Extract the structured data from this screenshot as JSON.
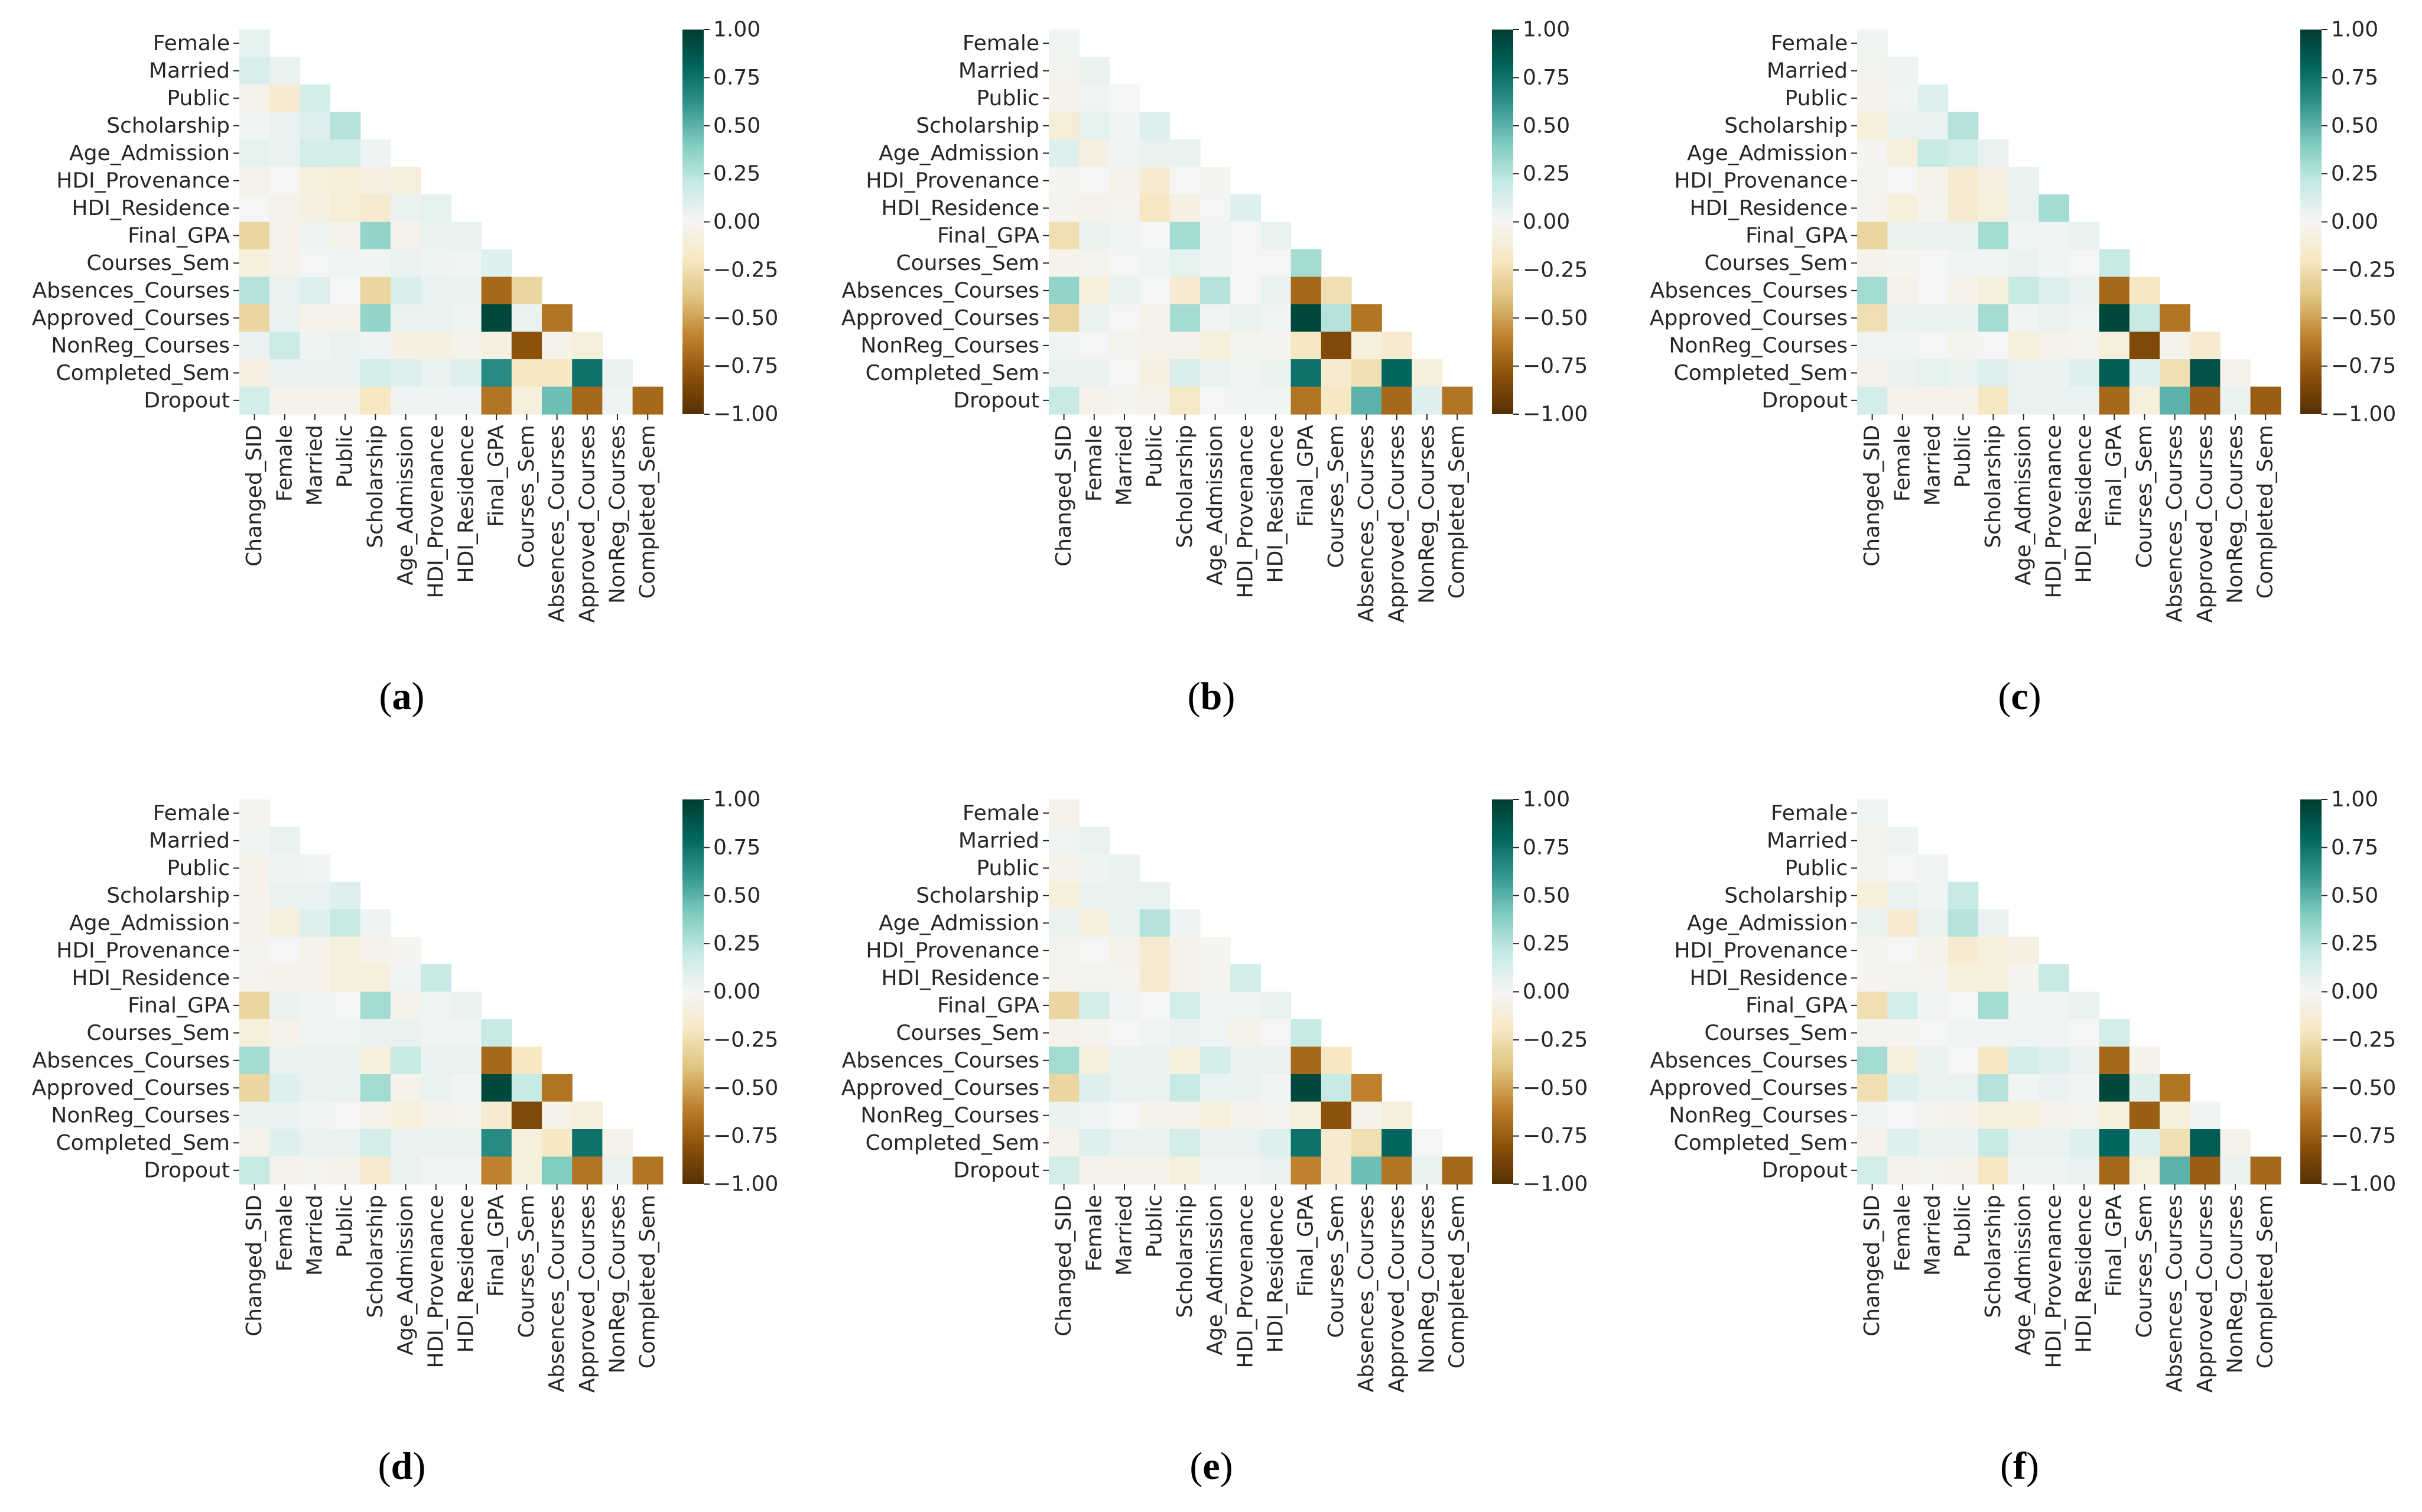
{
  "figure": {
    "variables": [
      "Changed_SID",
      "Female",
      "Married",
      "Public",
      "Scholarship",
      "Age_Admission",
      "HDI_Provenance",
      "HDI_Residence",
      "Final_GPA",
      "Courses_Sem",
      "Absences_Courses",
      "Approved_Courses",
      "NonReg_Courses",
      "Completed_Sem",
      "Dropout"
    ],
    "colorbar_ticks": [
      "1.00",
      "0.75",
      "0.50",
      "0.25",
      "0.00",
      "−0.25",
      "−0.50",
      "−0.75",
      "−1.00"
    ],
    "colormap": "BrBG",
    "colormap_stops": [
      "#543005",
      "#8c510a",
      "#bf812d",
      "#dfc27d",
      "#f6e8c3",
      "#f5f5f5",
      "#c7eae5",
      "#80cdc1",
      "#35978f",
      "#01665e",
      "#003c30"
    ]
  },
  "chart_data": [
    {
      "type": "heatmap",
      "panel_label": "(a)",
      "title": "",
      "vmin": -1,
      "vmax": 1,
      "rows": [
        "Female",
        "Married",
        "Public",
        "Scholarship",
        "Age_Admission",
        "HDI_Provenance",
        "HDI_Residence",
        "Final_GPA",
        "Courses_Sem",
        "Absences_Courses",
        "Approved_Courses",
        "NonReg_Courses",
        "Completed_Sem",
        "Dropout"
      ],
      "columns": [
        "Changed_SID",
        "Female",
        "Married",
        "Public",
        "Scholarship",
        "Age_Admission",
        "HDI_Provenance",
        "HDI_Residence",
        "Final_GPA",
        "Courses_Sem",
        "Absences_Courses",
        "Approved_Courses",
        "NonReg_Courses",
        "Completed_Sem"
      ],
      "values": [
        [
          0.08
        ],
        [
          0.12,
          0.05
        ],
        [
          -0.05,
          -0.15,
          0.15
        ],
        [
          0.02,
          0.05,
          0.1,
          0.25
        ],
        [
          0.08,
          0.05,
          0.15,
          0.15,
          0.03
        ],
        [
          -0.05,
          0.0,
          -0.1,
          -0.12,
          -0.08,
          -0.1
        ],
        [
          0.0,
          -0.05,
          -0.08,
          -0.12,
          -0.15,
          0.05,
          0.08
        ],
        [
          -0.3,
          -0.05,
          0.03,
          -0.05,
          0.35,
          -0.05,
          0.05,
          0.05
        ],
        [
          -0.1,
          -0.05,
          0.0,
          0.02,
          0.02,
          0.05,
          0.03,
          0.02,
          0.1
        ],
        [
          0.25,
          0.05,
          0.1,
          0.0,
          -0.3,
          0.12,
          0.05,
          0.05,
          -0.7,
          -0.3
        ],
        [
          -0.3,
          0.05,
          -0.05,
          -0.05,
          0.35,
          0.05,
          0.05,
          0.03,
          0.95,
          0.05,
          -0.65
        ],
        [
          0.05,
          0.18,
          0.03,
          0.05,
          0.03,
          -0.08,
          -0.08,
          -0.05,
          -0.08,
          -0.8,
          -0.05,
          -0.1
        ],
        [
          -0.08,
          0.05,
          0.05,
          0.05,
          0.15,
          0.1,
          0.05,
          0.1,
          0.65,
          -0.2,
          -0.2,
          0.75,
          0.05
        ],
        [
          0.15,
          -0.05,
          -0.05,
          -0.05,
          -0.2,
          0.03,
          0.03,
          0.03,
          -0.65,
          -0.1,
          0.45,
          -0.7,
          0.03,
          -0.7
        ]
      ]
    },
    {
      "type": "heatmap",
      "panel_label": "(b)",
      "title": "",
      "vmin": -1,
      "vmax": 1,
      "rows": [
        "Female",
        "Married",
        "Public",
        "Scholarship",
        "Age_Admission",
        "HDI_Provenance",
        "HDI_Residence",
        "Final_GPA",
        "Courses_Sem",
        "Absences_Courses",
        "Approved_Courses",
        "NonReg_Courses",
        "Completed_Sem",
        "Dropout"
      ],
      "columns": [
        "Changed_SID",
        "Female",
        "Married",
        "Public",
        "Scholarship",
        "Age_Admission",
        "HDI_Provenance",
        "HDI_Residence",
        "Final_GPA",
        "Courses_Sem",
        "Absences_Courses",
        "Approved_Courses",
        "NonReg_Courses",
        "Completed_Sem"
      ],
      "values": [
        [
          0.02
        ],
        [
          -0.03,
          0.05
        ],
        [
          -0.05,
          0.02,
          0.0
        ],
        [
          -0.12,
          0.08,
          0.02,
          0.1
        ],
        [
          0.1,
          -0.08,
          0.02,
          0.05,
          0.05
        ],
        [
          -0.02,
          0.0,
          -0.05,
          -0.15,
          0.0,
          -0.02
        ],
        [
          -0.03,
          -0.05,
          -0.03,
          -0.2,
          -0.08,
          0.0,
          0.1
        ],
        [
          -0.25,
          0.05,
          0.02,
          0.0,
          0.3,
          0.02,
          0.0,
          0.05
        ],
        [
          -0.05,
          -0.03,
          0.0,
          0.02,
          0.08,
          0.02,
          0.0,
          0.0,
          0.3
        ],
        [
          0.35,
          -0.1,
          0.05,
          0.0,
          -0.15,
          0.25,
          0.0,
          0.05,
          -0.7,
          -0.25
        ],
        [
          -0.3,
          0.05,
          0.0,
          -0.05,
          0.3,
          0.02,
          0.05,
          0.02,
          0.95,
          0.25,
          -0.65
        ],
        [
          0.02,
          0.0,
          -0.03,
          -0.05,
          -0.05,
          -0.1,
          -0.03,
          -0.02,
          -0.2,
          -0.85,
          -0.1,
          -0.15
        ],
        [
          0.05,
          0.05,
          0.0,
          -0.08,
          0.12,
          0.05,
          0.02,
          0.05,
          0.75,
          -0.15,
          -0.25,
          0.8,
          -0.1
        ],
        [
          0.2,
          -0.05,
          -0.03,
          -0.05,
          -0.18,
          0.0,
          0.02,
          0.02,
          -0.65,
          -0.2,
          0.5,
          -0.7,
          0.1,
          -0.65
        ]
      ]
    },
    {
      "type": "heatmap",
      "panel_label": "(c)",
      "title": "",
      "vmin": -1,
      "vmax": 1,
      "rows": [
        "Female",
        "Married",
        "Public",
        "Scholarship",
        "Age_Admission",
        "HDI_Provenance",
        "HDI_Residence",
        "Final_GPA",
        "Courses_Sem",
        "Absences_Courses",
        "Approved_Courses",
        "NonReg_Courses",
        "Completed_Sem",
        "Dropout"
      ],
      "columns": [
        "Changed_SID",
        "Female",
        "Married",
        "Public",
        "Scholarship",
        "Age_Admission",
        "HDI_Provenance",
        "HDI_Residence",
        "Final_GPA",
        "Courses_Sem",
        "Absences_Courses",
        "Approved_Courses",
        "NonReg_Courses",
        "Completed_Sem"
      ],
      "values": [
        [
          0.02
        ],
        [
          -0.03,
          0.03
        ],
        [
          -0.05,
          0.02,
          0.1
        ],
        [
          -0.1,
          0.05,
          0.05,
          0.25
        ],
        [
          -0.02,
          -0.1,
          0.2,
          0.15,
          0.05
        ],
        [
          -0.03,
          0.0,
          -0.05,
          -0.15,
          -0.08,
          0.05
        ],
        [
          -0.03,
          -0.1,
          -0.03,
          -0.15,
          -0.1,
          0.05,
          0.3
        ],
        [
          -0.3,
          0.05,
          0.05,
          0.05,
          0.3,
          0.02,
          0.02,
          0.05
        ],
        [
          -0.05,
          -0.02,
          0.0,
          0.02,
          0.02,
          0.05,
          0.02,
          0.0,
          0.2
        ],
        [
          0.3,
          -0.05,
          0.0,
          -0.05,
          -0.1,
          0.2,
          0.1,
          0.05,
          -0.7,
          -0.2
        ],
        [
          -0.25,
          0.05,
          0.05,
          0.05,
          0.3,
          0.02,
          0.05,
          0.02,
          0.95,
          0.2,
          -0.65
        ],
        [
          0.02,
          0.02,
          0.0,
          -0.03,
          0.0,
          -0.1,
          -0.05,
          -0.03,
          -0.1,
          -0.85,
          -0.05,
          -0.15
        ],
        [
          -0.05,
          0.05,
          0.08,
          0.05,
          0.1,
          0.05,
          0.05,
          0.1,
          0.85,
          0.1,
          -0.25,
          0.9,
          -0.05
        ],
        [
          0.15,
          -0.05,
          -0.05,
          -0.05,
          -0.2,
          0.05,
          0.05,
          0.05,
          -0.7,
          -0.1,
          0.5,
          -0.75,
          0.05,
          -0.75
        ]
      ]
    },
    {
      "type": "heatmap",
      "panel_label": "(d)",
      "title": "",
      "vmin": -1,
      "vmax": 1,
      "rows": [
        "Female",
        "Married",
        "Public",
        "Scholarship",
        "Age_Admission",
        "HDI_Provenance",
        "HDI_Residence",
        "Final_GPA",
        "Courses_Sem",
        "Absences_Courses",
        "Approved_Courses",
        "NonReg_Courses",
        "Completed_Sem",
        "Dropout"
      ],
      "columns": [
        "Changed_SID",
        "Female",
        "Married",
        "Public",
        "Scholarship",
        "Age_Admission",
        "HDI_Provenance",
        "HDI_Residence",
        "Final_GPA",
        "Courses_Sem",
        "Absences_Courses",
        "Approved_Courses",
        "NonReg_Courses",
        "Completed_Sem"
      ],
      "values": [
        [
          -0.02
        ],
        [
          0.02,
          0.05
        ],
        [
          -0.05,
          0.03,
          0.02
        ],
        [
          -0.05,
          0.05,
          0.05,
          0.1
        ],
        [
          -0.05,
          -0.1,
          0.1,
          0.2,
          0.03
        ],
        [
          -0.03,
          0.0,
          -0.05,
          -0.1,
          -0.05,
          -0.02
        ],
        [
          -0.03,
          -0.05,
          -0.05,
          -0.1,
          -0.1,
          0.02,
          0.2
        ],
        [
          -0.3,
          0.05,
          0.02,
          0.0,
          0.3,
          -0.05,
          0.02,
          0.05
        ],
        [
          -0.1,
          -0.05,
          0.02,
          0.02,
          0.05,
          0.05,
          0.02,
          0.02,
          0.2
        ],
        [
          0.3,
          0.05,
          0.05,
          0.05,
          -0.1,
          0.2,
          0.05,
          0.05,
          -0.7,
          -0.2
        ],
        [
          -0.3,
          0.1,
          0.05,
          0.05,
          0.3,
          -0.05,
          0.05,
          0.02,
          0.95,
          0.2,
          -0.65
        ],
        [
          0.05,
          0.05,
          0.02,
          0.0,
          -0.05,
          -0.1,
          -0.05,
          -0.03,
          -0.15,
          -0.85,
          -0.05,
          -0.1
        ],
        [
          -0.05,
          0.1,
          0.05,
          0.05,
          0.15,
          0.05,
          0.05,
          0.05,
          0.65,
          -0.1,
          -0.2,
          0.75,
          -0.05
        ],
        [
          0.2,
          -0.05,
          -0.03,
          -0.05,
          -0.15,
          0.05,
          0.02,
          0.02,
          -0.6,
          -0.1,
          0.4,
          -0.65,
          0.05,
          -0.65
        ]
      ]
    },
    {
      "type": "heatmap",
      "panel_label": "(e)",
      "title": "",
      "vmin": -1,
      "vmax": 1,
      "rows": [
        "Female",
        "Married",
        "Public",
        "Scholarship",
        "Age_Admission",
        "HDI_Provenance",
        "HDI_Residence",
        "Final_GPA",
        "Courses_Sem",
        "Absences_Courses",
        "Approved_Courses",
        "NonReg_Courses",
        "Completed_Sem",
        "Dropout"
      ],
      "columns": [
        "Changed_SID",
        "Female",
        "Married",
        "Public",
        "Scholarship",
        "Age_Admission",
        "HDI_Provenance",
        "HDI_Residence",
        "Final_GPA",
        "Courses_Sem",
        "Absences_Courses",
        "Approved_Courses",
        "NonReg_Courses",
        "Completed_Sem"
      ],
      "values": [
        [
          -0.05
        ],
        [
          0.02,
          0.05
        ],
        [
          -0.05,
          0.03,
          0.05
        ],
        [
          -0.1,
          0.05,
          0.05,
          0.05
        ],
        [
          0.05,
          -0.1,
          0.05,
          0.25,
          0.03
        ],
        [
          -0.03,
          0.0,
          -0.05,
          -0.15,
          -0.05,
          -0.02
        ],
        [
          -0.03,
          -0.03,
          -0.03,
          -0.15,
          -0.05,
          -0.02,
          0.15
        ],
        [
          -0.3,
          0.15,
          0.02,
          0.0,
          0.15,
          0.02,
          0.02,
          0.05
        ],
        [
          -0.05,
          -0.03,
          0.0,
          0.02,
          0.05,
          0.02,
          -0.05,
          0.0,
          0.2
        ],
        [
          0.3,
          -0.1,
          0.05,
          0.05,
          -0.1,
          0.15,
          0.05,
          0.05,
          -0.7,
          -0.2
        ],
        [
          -0.3,
          0.1,
          0.05,
          0.05,
          0.2,
          0.05,
          0.05,
          0.02,
          0.95,
          0.2,
          -0.6
        ],
        [
          0.05,
          0.02,
          0.0,
          -0.05,
          -0.05,
          -0.1,
          -0.05,
          -0.03,
          -0.1,
          -0.8,
          -0.05,
          -0.1
        ],
        [
          -0.05,
          0.1,
          0.05,
          0.05,
          0.15,
          0.05,
          0.05,
          0.1,
          0.75,
          -0.15,
          -0.25,
          0.8,
          0.0
        ],
        [
          0.15,
          -0.05,
          -0.05,
          -0.05,
          -0.1,
          0.02,
          0.02,
          0.05,
          -0.6,
          -0.15,
          0.45,
          -0.65,
          0.05,
          -0.7
        ]
      ]
    },
    {
      "type": "heatmap",
      "panel_label": "(f)",
      "title": "",
      "vmin": -1,
      "vmax": 1,
      "rows": [
        "Female",
        "Married",
        "Public",
        "Scholarship",
        "Age_Admission",
        "HDI_Provenance",
        "HDI_Residence",
        "Final_GPA",
        "Courses_Sem",
        "Absences_Courses",
        "Approved_Courses",
        "NonReg_Courses",
        "Completed_Sem",
        "Dropout"
      ],
      "columns": [
        "Changed_SID",
        "Female",
        "Married",
        "Public",
        "Scholarship",
        "Age_Admission",
        "HDI_Provenance",
        "HDI_Residence",
        "Final_GPA",
        "Courses_Sem",
        "Absences_Courses",
        "Approved_Courses",
        "NonReg_Courses",
        "Completed_Sem"
      ],
      "values": [
        [
          0.02
        ],
        [
          -0.03,
          0.03
        ],
        [
          -0.03,
          0.0,
          0.02
        ],
        [
          -0.1,
          0.05,
          0.02,
          0.2
        ],
        [
          0.05,
          -0.15,
          0.05,
          0.25,
          0.05
        ],
        [
          -0.02,
          0.0,
          -0.05,
          -0.15,
          -0.1,
          -0.08
        ],
        [
          -0.02,
          -0.03,
          -0.03,
          -0.1,
          -0.1,
          -0.02,
          0.2
        ],
        [
          -0.25,
          0.15,
          0.02,
          0.0,
          0.3,
          0.02,
          0.02,
          0.05
        ],
        [
          -0.03,
          -0.02,
          0.0,
          0.02,
          0.02,
          0.02,
          0.02,
          0.0,
          0.15
        ],
        [
          0.3,
          -0.1,
          0.05,
          0.0,
          -0.2,
          0.15,
          0.1,
          0.05,
          -0.7,
          -0.05
        ],
        [
          -0.25,
          0.1,
          0.05,
          0.05,
          0.25,
          0.02,
          0.05,
          0.02,
          0.95,
          0.1,
          -0.65
        ],
        [
          0.02,
          0.0,
          -0.03,
          -0.05,
          -0.1,
          -0.1,
          -0.05,
          -0.03,
          -0.1,
          -0.75,
          -0.1,
          0.02
        ],
        [
          -0.05,
          0.1,
          0.05,
          0.05,
          0.2,
          0.05,
          0.05,
          0.1,
          0.8,
          0.1,
          -0.25,
          0.85,
          -0.05
        ],
        [
          0.15,
          -0.05,
          -0.03,
          -0.05,
          -0.2,
          0.03,
          0.03,
          0.05,
          -0.7,
          -0.1,
          0.5,
          -0.75,
          0.05,
          -0.7
        ]
      ]
    }
  ]
}
